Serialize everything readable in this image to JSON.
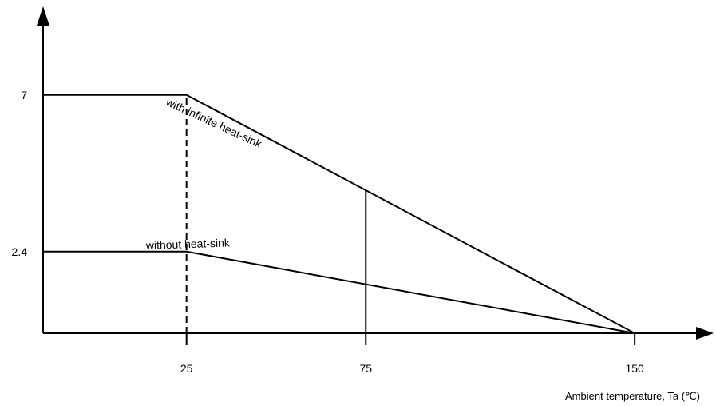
{
  "chart_data": {
    "type": "line",
    "title": "",
    "xlabel": "Ambient temperature, Ta (℃)",
    "ylabel": "",
    "xlim": [
      -15,
      168
    ],
    "ylim": [
      0,
      9.6
    ],
    "x_ticks": [
      "25",
      "75",
      "150"
    ],
    "y_ticks": [
      "2.4",
      "7"
    ],
    "grid": false,
    "series": [
      {
        "name": "with infinite heat-sink",
        "x": [
          0,
          25,
          150
        ],
        "y": [
          7,
          7,
          0
        ]
      },
      {
        "name": "without heat-sink",
        "x": [
          0,
          25,
          150
        ],
        "y": [
          2.4,
          2.4,
          0
        ]
      }
    ],
    "annotations": {
      "infinite": "with infinite heat-sink",
      "without": "without heat-sink"
    },
    "reference_lines": [
      {
        "x": 25,
        "y_top": 7,
        "style": "dashed"
      },
      {
        "x": 75,
        "y_top": 4.2,
        "style": "solid"
      }
    ]
  }
}
